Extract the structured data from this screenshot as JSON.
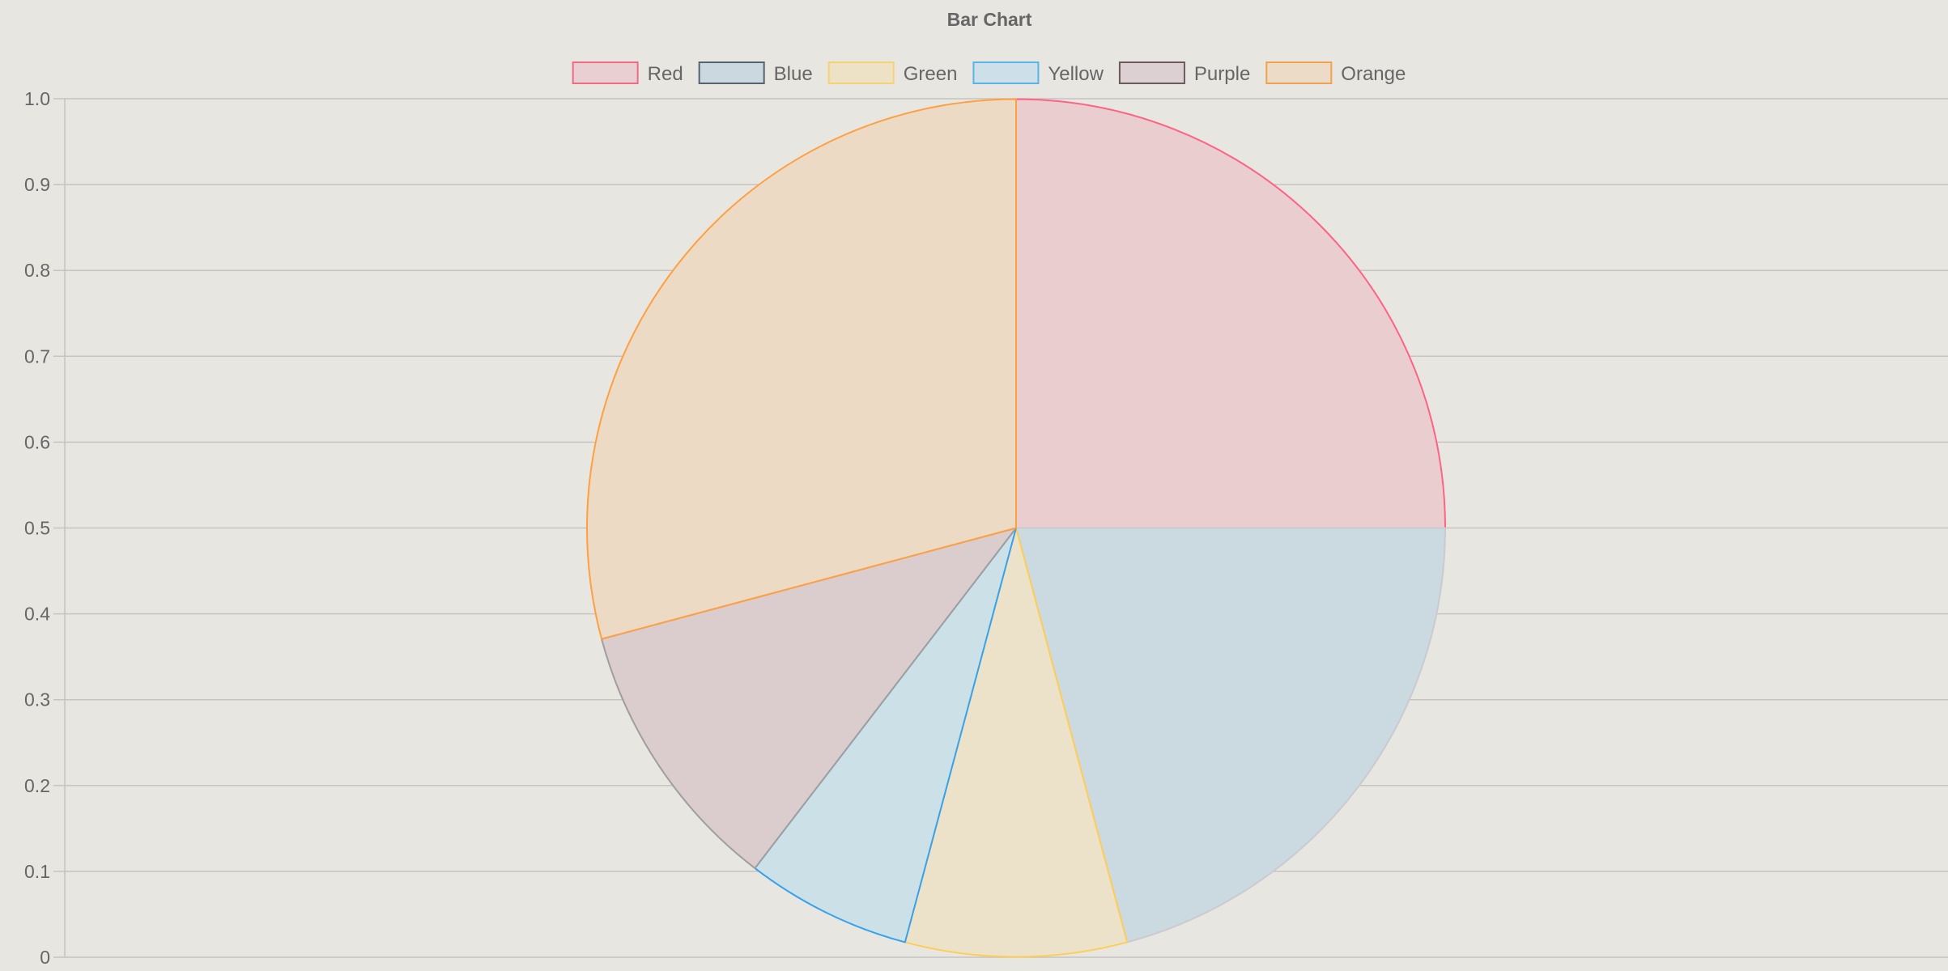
{
  "chart_data": {
    "type": "pie",
    "title": "Bar Chart",
    "categories": [
      "Red",
      "Blue",
      "Green",
      "Yellow",
      "Purple",
      "Orange"
    ],
    "values": [
      12,
      10,
      4,
      3,
      5,
      14
    ],
    "colors": {
      "border": [
        "#ff6384",
        "#c9cbcf",
        "#ffcd56",
        "#36a2eb",
        "#9e9e9e",
        "#ff9f40"
      ],
      "fill": [
        "#ff6384",
        "#4b9ac2",
        "#ffcd56",
        "#36a2eb",
        "#9966ff",
        "#ff9f40"
      ],
      "legend_fill": [
        "#e9cfd1",
        "#cbd8e0",
        "#ede2c6",
        "#cde0ea",
        "#ddd0d2",
        "#ecdcc7"
      ],
      "legend_border": [
        "#f06a84",
        "#556270",
        "#f5d273",
        "#56b4e9",
        "#6b5b5e",
        "#f3a04f"
      ],
      "slice_fill": [
        "#e9cdcf",
        "#cbd9e0",
        "#ece2c9",
        "#cce0e8",
        "#dbcdce",
        "#ecdac4"
      ]
    },
    "y_axis": {
      "ticks": [
        "0",
        "0.1",
        "0.2",
        "0.3",
        "0.4",
        "0.5",
        "0.6",
        "0.7",
        "0.8",
        "0.9",
        "1.0"
      ],
      "range": [
        0,
        1
      ],
      "grid": true
    },
    "legend_position": "top"
  }
}
